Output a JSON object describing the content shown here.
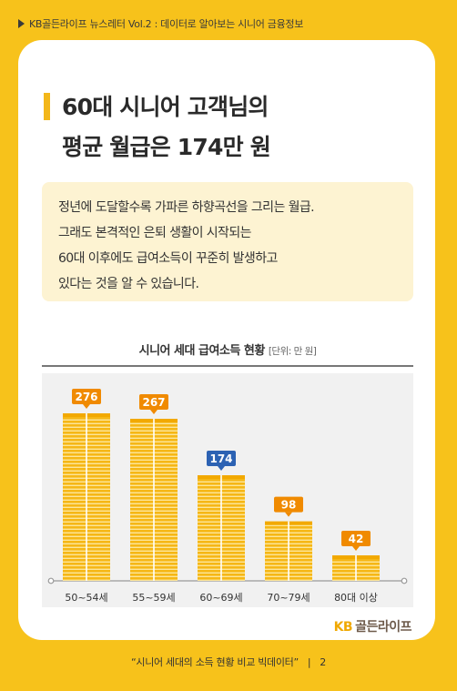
{
  "header": {
    "text": "KB골든라이프 뉴스레터 Vol.2 : 데이터로 알아보는 시니어 금융정보"
  },
  "title": {
    "line1": "60대 시니어 고객님의",
    "line2": "평균 월급은 174만 원"
  },
  "description": {
    "line1": "정년에 도달할수록 가파른 하향곡선을 그리는 월급.",
    "line2": "그래도 본격적인 은퇴 생활이 시작되는",
    "line3": "60대 이후에도 급여소득이 꾸준히 발생하고",
    "line4": "있다는 것을 알 수 있습니다."
  },
  "chart_data": {
    "type": "bar",
    "title": "시니어 세대 급여소득 현황",
    "unit": "[단위: 만 원]",
    "categories": [
      "50~54세",
      "55~59세",
      "60~69세",
      "70~79세",
      "80대 이상"
    ],
    "values": [
      276,
      267,
      174,
      98,
      42
    ],
    "label_colors": [
      "#f08a00",
      "#f08a00",
      "#2c62b3",
      "#f08a00",
      "#f08a00"
    ],
    "ylim": [
      0,
      300
    ]
  },
  "brand": {
    "kb": "KB",
    "name": "골든라이프"
  },
  "footer": {
    "text": "“시니어 세대의 소득 현황 비교 빅데이터”",
    "page": "2"
  }
}
